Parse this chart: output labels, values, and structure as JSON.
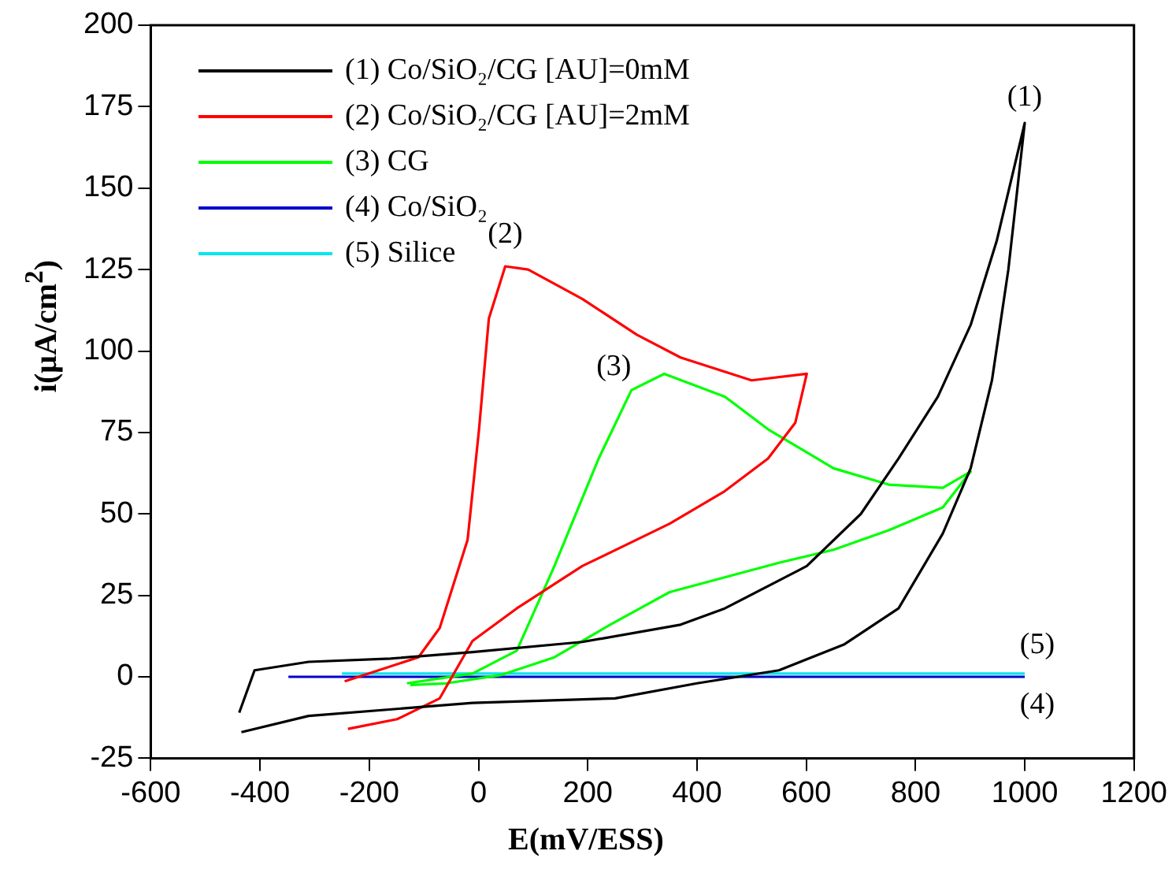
{
  "chart_data": {
    "type": "line",
    "xlabel": "E(mV/ESS)",
    "ylabel": "i(μA/cm$^{2}$)",
    "xlim": [
      -600,
      1200
    ],
    "ylim": [
      -25,
      200
    ],
    "xticks": [
      -600,
      -400,
      -200,
      0,
      200,
      400,
      600,
      800,
      1000,
      1200
    ],
    "yticks": [
      -25,
      0,
      25,
      50,
      75,
      100,
      125,
      150,
      175,
      200
    ],
    "grid": false,
    "legend": "top left",
    "marker": "none",
    "line_style": "solid",
    "series": [
      {
        "name": "(1) Co/SiO₂/CG [AU]=0mM",
        "color": "#000000",
        "x": [
          -438,
          -410,
          -311,
          -161,
          -11,
          190,
          370,
          451,
          601,
          700,
          769,
          841,
          901,
          949,
          1000,
          970,
          940,
          901,
          850,
          769,
          670,
          550,
          400,
          250,
          -11,
          -311,
          -434
        ],
        "values": [
          -11,
          2,
          4.6,
          5.6,
          7.6,
          10.7,
          16,
          21,
          34,
          50,
          67,
          86,
          108,
          134,
          170,
          125,
          91,
          64,
          44,
          21,
          10,
          2,
          -2,
          -6.6,
          -8,
          -12,
          -17
        ]
      },
      {
        "name": "(2) Co/SiO₂/CG [AU]=2mM",
        "color": "#ff0000",
        "x": [
          -245,
          -110,
          -71,
          -20,
          1,
          19,
          49,
          91,
          190,
          290,
          370,
          500,
          601,
          580,
          530,
          451,
          350,
          190,
          70,
          -11,
          -71,
          -149,
          -239
        ],
        "values": [
          -1.4,
          6,
          15,
          42,
          76,
          110,
          126,
          125,
          116,
          105,
          98,
          91,
          93,
          78,
          67,
          57,
          47,
          34,
          21,
          11,
          -6.6,
          -13,
          -16
        ]
      },
      {
        "name": "(3) CG",
        "color": "#00ff00",
        "x": [
          -131,
          -11,
          70,
          139,
          220,
          280,
          340,
          451,
          530,
          650,
          751,
          850,
          901,
          850,
          751,
          650,
          550,
          350,
          241,
          139,
          40,
          -59,
          -125
        ],
        "values": [
          -2,
          1,
          8,
          34,
          67,
          88,
          93,
          86,
          76,
          64,
          59,
          58,
          63,
          52,
          45,
          39,
          35,
          26,
          16,
          6,
          0.5,
          -2,
          -2.5
        ]
      },
      {
        "name": "(4) Co/SiO₂",
        "color": "#0000cc",
        "x": [
          -348,
          1000
        ],
        "values": [
          0,
          0
        ]
      },
      {
        "name": "(5) Silice",
        "color": "#00e5ee",
        "x": [
          -250,
          1000
        ],
        "values": [
          1,
          1
        ]
      }
    ],
    "annotations": [
      {
        "text": "(1)",
        "x": 1000,
        "y": 170
      },
      {
        "text": "(2)",
        "x": 49,
        "y": 126
      },
      {
        "text": "(3)",
        "x": 340,
        "y": 93
      },
      {
        "text": "(5)",
        "x": 1000,
        "y": 1
      },
      {
        "text": "(4)",
        "x": 1000,
        "y": 0
      }
    ]
  }
}
